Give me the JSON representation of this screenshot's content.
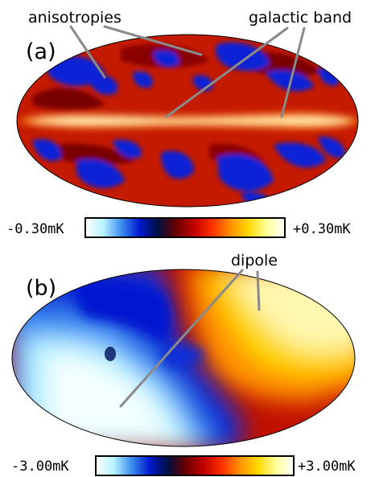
{
  "panel_a": {
    "label": "(a)",
    "annotations": {
      "anisotropies": "anisotropies",
      "galactic_band": "galactic band"
    },
    "colorbar": {
      "min_label": "-0.30mK",
      "max_label": "+0.30mK",
      "colors": [
        "#ffffff",
        "#b7f3ff",
        "#3c8cf0",
        "#0018d0",
        "#001040",
        "#6a0000",
        "#c00000",
        "#ff3000",
        "#ff9000",
        "#ffd800",
        "#ffff9a",
        "#ffffff"
      ]
    }
  },
  "panel_b": {
    "label": "(b)",
    "annotations": {
      "dipole": "dipole"
    },
    "colorbar": {
      "min_label": "-3.00mK",
      "max_label": "+3.00mK",
      "colors": [
        "#ffffff",
        "#b7f3ff",
        "#3c8cf0",
        "#0018d0",
        "#001040",
        "#6a0000",
        "#c00000",
        "#ff3000",
        "#ff9000",
        "#ffd800",
        "#ffff9a",
        "#ffffff"
      ]
    }
  }
}
